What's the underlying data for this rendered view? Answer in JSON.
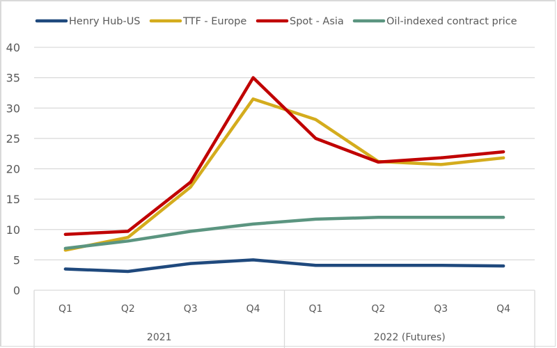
{
  "chart_data": {
    "type": "line",
    "title": "",
    "xlabel": "",
    "ylabel": "",
    "ylim": [
      0,
      40
    ],
    "yticks": [
      0,
      5,
      10,
      15,
      20,
      25,
      30,
      35,
      40
    ],
    "grid": true,
    "legend_position": "top",
    "groups": [
      {
        "label": "2021",
        "categories": [
          "Q1",
          "Q2",
          "Q3",
          "Q4"
        ]
      },
      {
        "label": "2022 (Futures)",
        "categories": [
          "Q1",
          "Q2",
          "Q3",
          "Q4"
        ]
      }
    ],
    "categories": [
      "Q1",
      "Q2",
      "Q3",
      "Q4",
      "Q1",
      "Q2",
      "Q3",
      "Q4"
    ],
    "series": [
      {
        "name": "Henry Hub-US",
        "color": "#1f497d",
        "values": [
          3.5,
          3.1,
          4.4,
          5.0,
          4.1,
          4.1,
          4.1,
          4.0
        ]
      },
      {
        "name": "TTF - Europe",
        "color": "#d4ac1d",
        "values": [
          6.6,
          8.7,
          17.0,
          31.5,
          28.1,
          21.2,
          20.7,
          21.8
        ]
      },
      {
        "name": "Spot - Asia",
        "color": "#c00000",
        "values": [
          9.2,
          9.7,
          17.8,
          35.0,
          25.0,
          21.1,
          21.8,
          22.8
        ]
      },
      {
        "name": "Oil-indexed contract price",
        "color": "#5b9580",
        "values": [
          6.9,
          8.1,
          9.7,
          10.9,
          11.7,
          12.0,
          12.0,
          12.0
        ]
      }
    ]
  }
}
